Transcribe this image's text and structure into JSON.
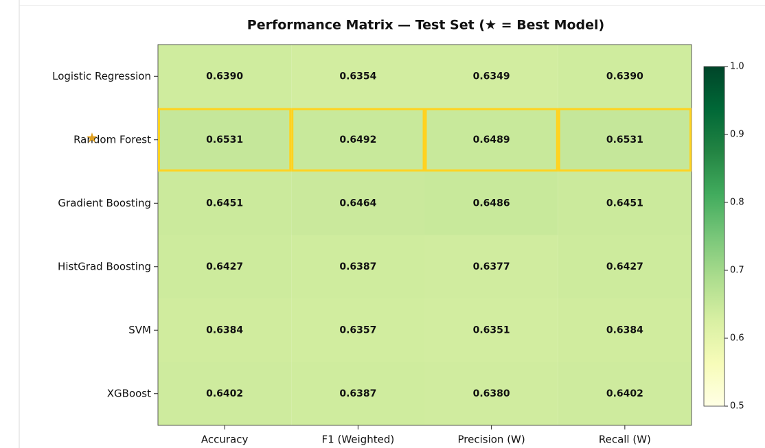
{
  "chart_data": {
    "type": "heatmap",
    "title": "Performance Matrix — Test Set  (★ = Best Model)",
    "rows": [
      "Logistic Regression",
      "Random Forest",
      "Gradient Boosting",
      "HistGrad Boosting",
      "SVM",
      "XGBoost"
    ],
    "columns": [
      "Accuracy",
      "F1 (Weighted)",
      "Precision (W)",
      "Recall (W)"
    ],
    "values": [
      [
        0.639,
        0.6354,
        0.6349,
        0.639
      ],
      [
        0.6531,
        0.6492,
        0.6489,
        0.6531
      ],
      [
        0.6451,
        0.6464,
        0.6486,
        0.6451
      ],
      [
        0.6427,
        0.6387,
        0.6377,
        0.6427
      ],
      [
        0.6384,
        0.6357,
        0.6351,
        0.6384
      ],
      [
        0.6402,
        0.6387,
        0.638,
        0.6402
      ]
    ],
    "value_labels": [
      [
        "0.6390",
        "0.6354",
        "0.6349",
        "0.6390"
      ],
      [
        "0.6531",
        "0.6492",
        "0.6489",
        "0.6531"
      ],
      [
        "0.6451",
        "0.6464",
        "0.6486",
        "0.6451"
      ],
      [
        "0.6427",
        "0.6387",
        "0.6377",
        "0.6427"
      ],
      [
        "0.6384",
        "0.6357",
        "0.6351",
        "0.6384"
      ],
      [
        "0.6402",
        "0.6387",
        "0.6380",
        "0.6402"
      ]
    ],
    "clim": [
      0.5,
      1
    ],
    "cticks": [
      0.5,
      0.6,
      0.7,
      0.8,
      0.9,
      {
        "value": 1,
        "label": "1.0"
      }
    ],
    "colormap": [
      "#ffffe5",
      "#f7fcb9",
      "#d9f0a3",
      "#addd8e",
      "#78c679",
      "#41ab5d",
      "#238443",
      "#006837",
      "#004529"
    ],
    "highlight_row": 1,
    "highlight_color": "#ffd21f"
  }
}
